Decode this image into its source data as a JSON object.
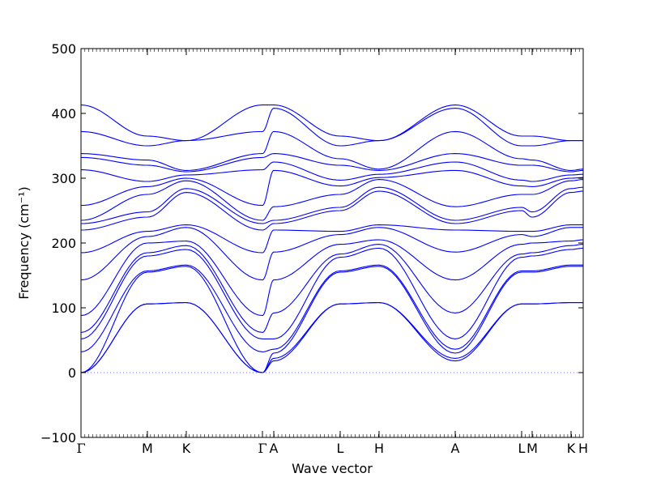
{
  "chart_data": {
    "type": "line",
    "title": "",
    "xlabel": "Wave vector",
    "ylabel": "Frequency (cm⁻¹)",
    "ylim": [
      -100,
      500
    ],
    "yticks": [
      -100,
      0,
      100,
      200,
      300,
      400,
      500
    ],
    "ytick_labels": [
      "−100",
      "0",
      "100",
      "200",
      "300",
      "400",
      "500"
    ],
    "xlim": [
      0,
      1
    ],
    "high_symmetry_points": [
      {
        "label": "Γ",
        "x": 0.0
      },
      {
        "label": "M",
        "x": 0.1322
      },
      {
        "label": "K",
        "x": 0.2097
      },
      {
        "label": "Γ",
        "x": 0.3613
      },
      {
        "label": "A",
        "x": 0.3839
      },
      {
        "label": "L",
        "x": 0.5161
      },
      {
        "label": "H",
        "x": 0.5935
      },
      {
        "label": "A",
        "x": 0.7452
      },
      {
        "label": "L",
        "x": 0.8774
      },
      {
        "label": "M",
        "x": 0.8984
      },
      {
        "label": "K",
        "x": 0.9758
      },
      {
        "label": "H",
        "x": 1.0
      }
    ],
    "zero_line": {
      "y": 0,
      "style": "dotted"
    },
    "series_color": "#0000ff",
    "band_count": 18,
    "bands": [
      {
        "Gamma": 0,
        "M": 106,
        "K": 108,
        "A": 18,
        "L": 106,
        "H": 108
      },
      {
        "Gamma": 0,
        "M": 106,
        "K": 108,
        "A": 22,
        "L": 106,
        "H": 108
      },
      {
        "Gamma": 0,
        "M": 155,
        "K": 164,
        "A": 30,
        "L": 155,
        "H": 164
      },
      {
        "Gamma": 32,
        "M": 157,
        "K": 166,
        "A": 36,
        "L": 157,
        "H": 166
      },
      {
        "Gamma": 52,
        "M": 180,
        "K": 190,
        "A": 52,
        "L": 178,
        "H": 192
      },
      {
        "Gamma": 62,
        "M": 185,
        "K": 196,
        "A": 92,
        "L": 183,
        "H": 198
      },
      {
        "Gamma": 88,
        "M": 200,
        "K": 203,
        "A": 143,
        "L": 198,
        "H": 205
      },
      {
        "Gamma": 143,
        "M": 210,
        "K": 224,
        "A": 186,
        "L": 213,
        "H": 224
      },
      {
        "Gamma": 185,
        "M": 218,
        "K": 228,
        "A": 220,
        "L": 218,
        "H": 228
      },
      {
        "Gamma": 220,
        "M": 240,
        "K": 278,
        "A": 230,
        "L": 250,
        "H": 280
      },
      {
        "Gamma": 230,
        "M": 248,
        "K": 284,
        "A": 235,
        "L": 255,
        "H": 286
      },
      {
        "Gamma": 235,
        "M": 275,
        "K": 296,
        "A": 256,
        "L": 275,
        "H": 298
      },
      {
        "Gamma": 258,
        "M": 287,
        "K": 300,
        "A": 312,
        "L": 288,
        "H": 301
      },
      {
        "Gamma": 313,
        "M": 295,
        "K": 305,
        "A": 325,
        "L": 297,
        "H": 306
      },
      {
        "Gamma": 332,
        "M": 320,
        "K": 310,
        "A": 338,
        "L": 320,
        "H": 312
      },
      {
        "Gamma": 338,
        "M": 328,
        "K": 312,
        "A": 372,
        "L": 330,
        "H": 314
      },
      {
        "Gamma": 372,
        "M": 350,
        "K": 358,
        "A": 408,
        "L": 350,
        "H": 358
      },
      {
        "Gamma": 413,
        "M": 365,
        "K": 358,
        "A": 413,
        "L": 365,
        "H": 358
      }
    ]
  }
}
